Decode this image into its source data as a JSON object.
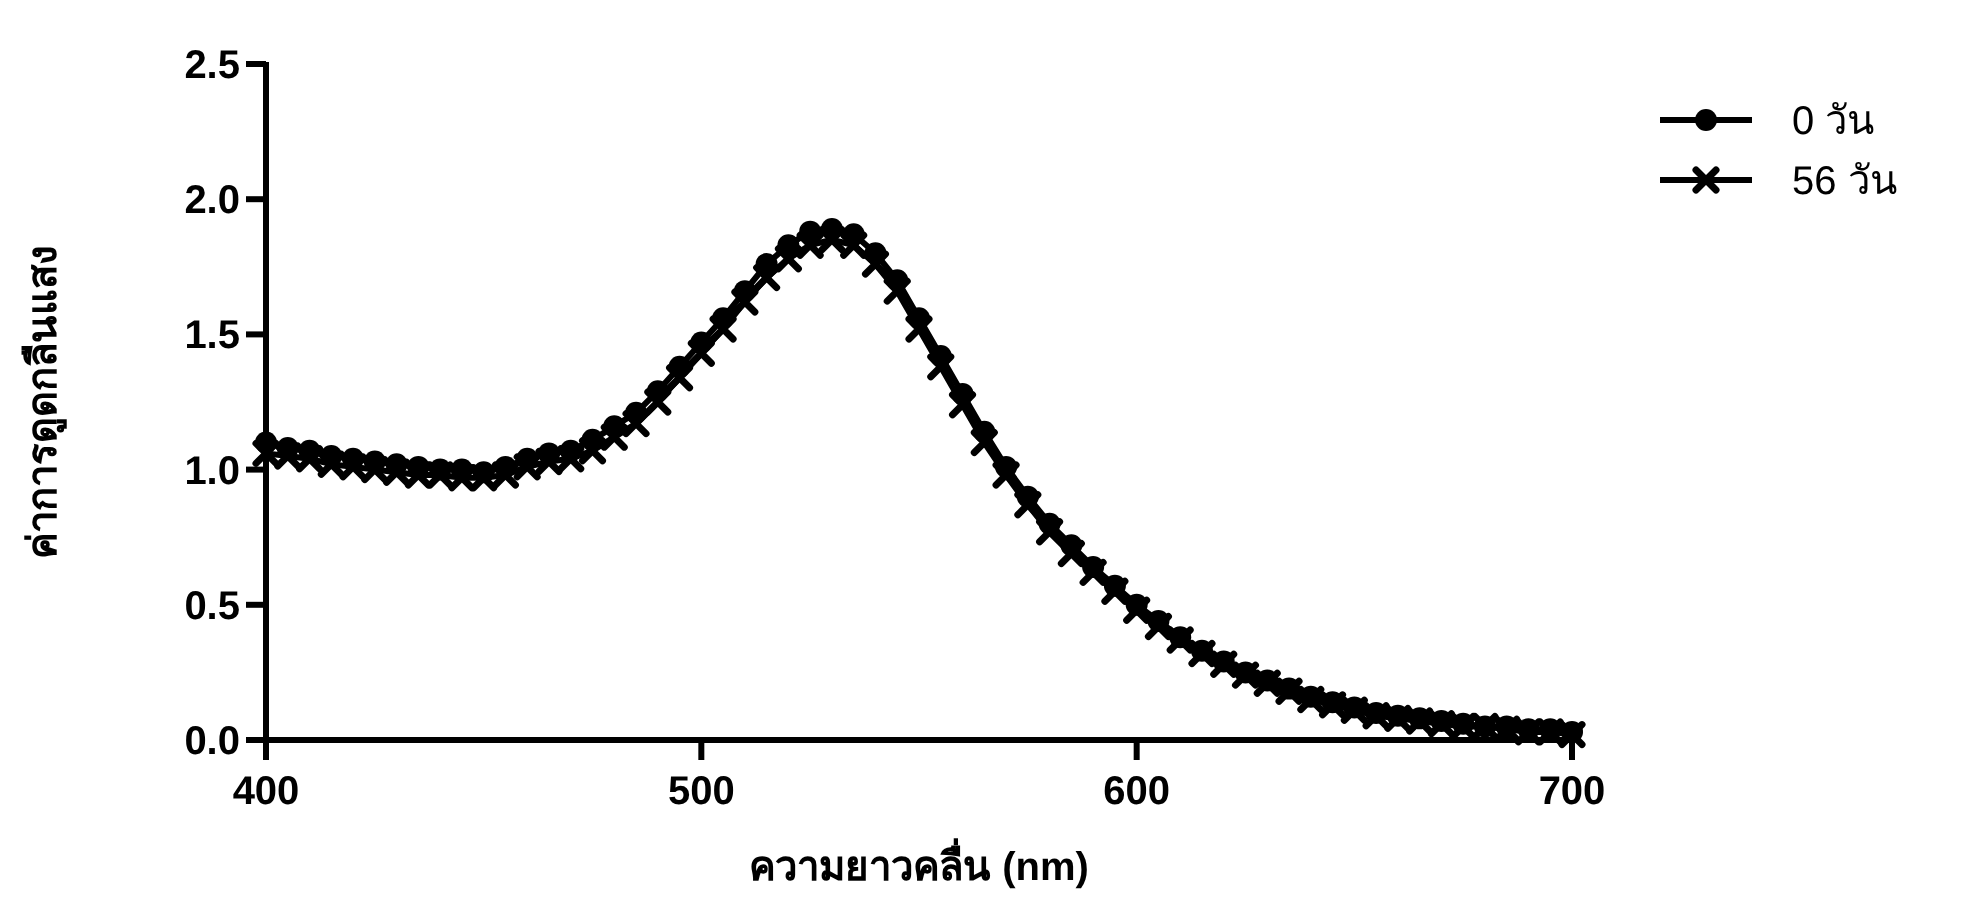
{
  "chart_data": {
    "type": "line",
    "xlabel": "ความยาวคลื่น (nm)",
    "ylabel": "ค่าการดูดกลืนแสง",
    "xlim": [
      400,
      700
    ],
    "ylim": [
      0,
      2.5
    ],
    "xticks": [
      400,
      500,
      600,
      700
    ],
    "yticks": [
      {
        "value": 0,
        "label": "0.0"
      },
      {
        "value": 0.5,
        "label": "0.5"
      },
      {
        "value": 1,
        "label": "1.0"
      },
      {
        "value": 1.5,
        "label": "1.5"
      },
      {
        "value": 2,
        "label": "2.0"
      },
      {
        "value": 2.5,
        "label": "2.5"
      }
    ],
    "legend": "top right",
    "grid": false,
    "x": [
      400,
      405,
      410,
      415,
      420,
      425,
      430,
      435,
      440,
      445,
      450,
      455,
      460,
      465,
      470,
      475,
      480,
      485,
      490,
      495,
      500,
      505,
      510,
      515,
      520,
      525,
      530,
      535,
      540,
      545,
      550,
      555,
      560,
      565,
      570,
      575,
      580,
      585,
      590,
      595,
      600,
      605,
      610,
      615,
      620,
      625,
      630,
      635,
      640,
      645,
      650,
      655,
      660,
      665,
      670,
      675,
      680,
      685,
      690,
      695,
      700
    ],
    "series": [
      {
        "name": "0 วัน",
        "color": "#000000",
        "marker": "circle",
        "values": [
          1.1,
          1.08,
          1.07,
          1.05,
          1.04,
          1.03,
          1.02,
          1.01,
          1.0,
          1.0,
          0.99,
          1.01,
          1.04,
          1.06,
          1.07,
          1.11,
          1.16,
          1.21,
          1.29,
          1.38,
          1.47,
          1.56,
          1.66,
          1.76,
          1.83,
          1.88,
          1.89,
          1.87,
          1.8,
          1.7,
          1.56,
          1.42,
          1.28,
          1.14,
          1.01,
          0.9,
          0.8,
          0.72,
          0.64,
          0.57,
          0.5,
          0.44,
          0.38,
          0.33,
          0.29,
          0.25,
          0.22,
          0.19,
          0.16,
          0.14,
          0.12,
          0.1,
          0.09,
          0.08,
          0.07,
          0.06,
          0.05,
          0.05,
          0.04,
          0.04,
          0.03
        ]
      },
      {
        "name": "56 วัน",
        "color": "#000000",
        "marker": "cross",
        "values": [
          1.06,
          1.05,
          1.04,
          1.02,
          1.01,
          1.0,
          0.99,
          0.98,
          0.98,
          0.97,
          0.97,
          0.98,
          1.01,
          1.03,
          1.04,
          1.07,
          1.12,
          1.17,
          1.25,
          1.34,
          1.43,
          1.52,
          1.62,
          1.71,
          1.78,
          1.83,
          1.85,
          1.83,
          1.76,
          1.66,
          1.52,
          1.38,
          1.24,
          1.1,
          0.98,
          0.87,
          0.77,
          0.69,
          0.62,
          0.55,
          0.48,
          0.42,
          0.37,
          0.32,
          0.28,
          0.24,
          0.21,
          0.18,
          0.15,
          0.13,
          0.11,
          0.09,
          0.08,
          0.07,
          0.06,
          0.05,
          0.05,
          0.04,
          0.03,
          0.03,
          0.02
        ]
      }
    ]
  }
}
